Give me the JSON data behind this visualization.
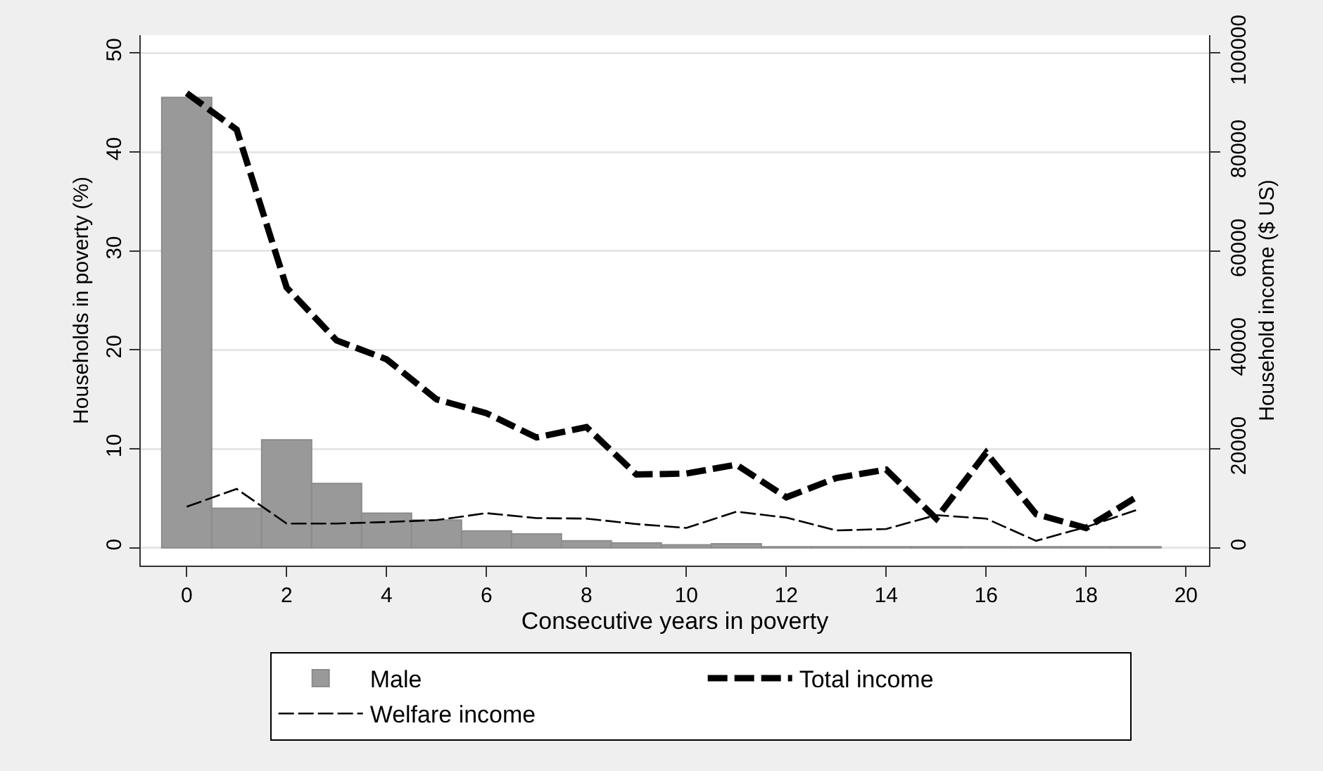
{
  "chart_data": {
    "type": "histogram",
    "xlabel": "Consecutive years in poverty",
    "ylabel": "Households in poverty (%)",
    "y2label": "Household income ($ US)",
    "bins": [
      -0.5,
      0.5,
      1.5,
      2.5,
      3.5,
      4.5,
      5.5,
      6.5,
      7.5,
      8.5,
      9.5,
      10.5,
      11.5,
      12.5,
      13.5,
      14.5,
      15.5,
      16.5,
      17.5,
      18.5,
      19.5
    ],
    "series": [
      {
        "name": "Male",
        "color": "#999999",
        "values": [
          45.5,
          4.0,
          10.9,
          6.5,
          3.5,
          2.8,
          1.7,
          1.4,
          0.7,
          0.5,
          0.3,
          0.4,
          0.1,
          0.1,
          0.1,
          0.1,
          0.1,
          0.1,
          0.1,
          0.1
        ]
      },
      {
        "name": "Total income",
        "type": "line",
        "axis": "y2",
        "color": "#000000",
        "line_style": "dashed",
        "x": [
          0,
          1,
          2,
          3,
          4,
          5,
          6,
          7,
          8,
          9,
          10,
          11,
          12,
          13,
          14,
          15,
          16,
          17,
          18,
          19
        ],
        "values": [
          91900,
          84500,
          52600,
          41900,
          38100,
          30000,
          27200,
          22300,
          24400,
          14800,
          15000,
          16800,
          10200,
          14100,
          15800,
          5900,
          19200,
          6800,
          4000,
          10200
        ]
      },
      {
        "name": "Welfare income",
        "type": "line",
        "axis": "y2",
        "color": "#000000",
        "line_style": "dashed",
        "x": [
          0,
          1,
          2,
          3,
          4,
          5,
          6,
          7,
          8,
          9,
          10,
          11,
          12,
          13,
          14,
          15,
          16,
          17,
          18,
          19
        ],
        "values": [
          8300,
          11900,
          4900,
          4900,
          5200,
          5600,
          7000,
          6000,
          5900,
          4800,
          4000,
          7300,
          6100,
          3500,
          3800,
          6600,
          5900,
          1400,
          4200,
          7600
        ]
      }
    ],
    "xlim": [
      -0.92,
      20.46
    ],
    "xticks": [
      0,
      2,
      4,
      6,
      8,
      10,
      12,
      14,
      16,
      18,
      20
    ],
    "ylim": [
      -1.8,
      51.8
    ],
    "yticks": [
      0,
      10,
      20,
      30,
      40,
      50
    ],
    "y2lim": [
      -3600,
      103600
    ],
    "y2ticks": [
      0,
      20000,
      40000,
      60000,
      80000,
      100000
    ],
    "grid": "y",
    "legend": "bottom"
  }
}
